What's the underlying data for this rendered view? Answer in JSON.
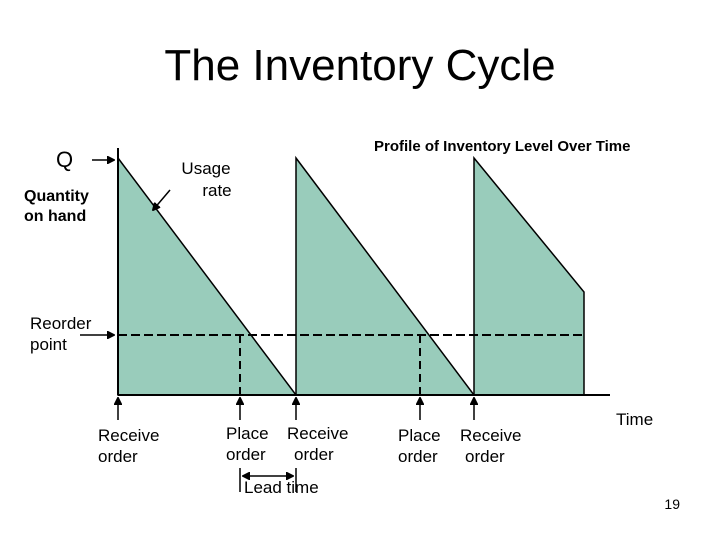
{
  "slide": {
    "title": "The Inventory Cycle",
    "page_number": "19",
    "profile_title": "Profile of Inventory Level Over Time",
    "colors": {
      "fill": "#99ccbb",
      "stroke": "#000000"
    }
  },
  "labels": {
    "q": "Q",
    "quantity_line1": "Quantity",
    "quantity_line2": "on hand",
    "usage_line1": "Usage",
    "usage_line2": "rate",
    "reorder_line1": "Reorder",
    "reorder_line2": "point",
    "time": "Time",
    "lead_time": "Lead time",
    "receive_order_1_line1": "Receive",
    "receive_order_1_line2": "order",
    "place_1_line1": "Place",
    "place_1_line2": "order",
    "receive_order_2_line1": "Receive",
    "receive_order_2_line2": "order",
    "place_2_line1": "Place",
    "place_2_line2": "order",
    "receive_order_3_line1": "Receive",
    "receive_order_3_line2": "order"
  }
}
